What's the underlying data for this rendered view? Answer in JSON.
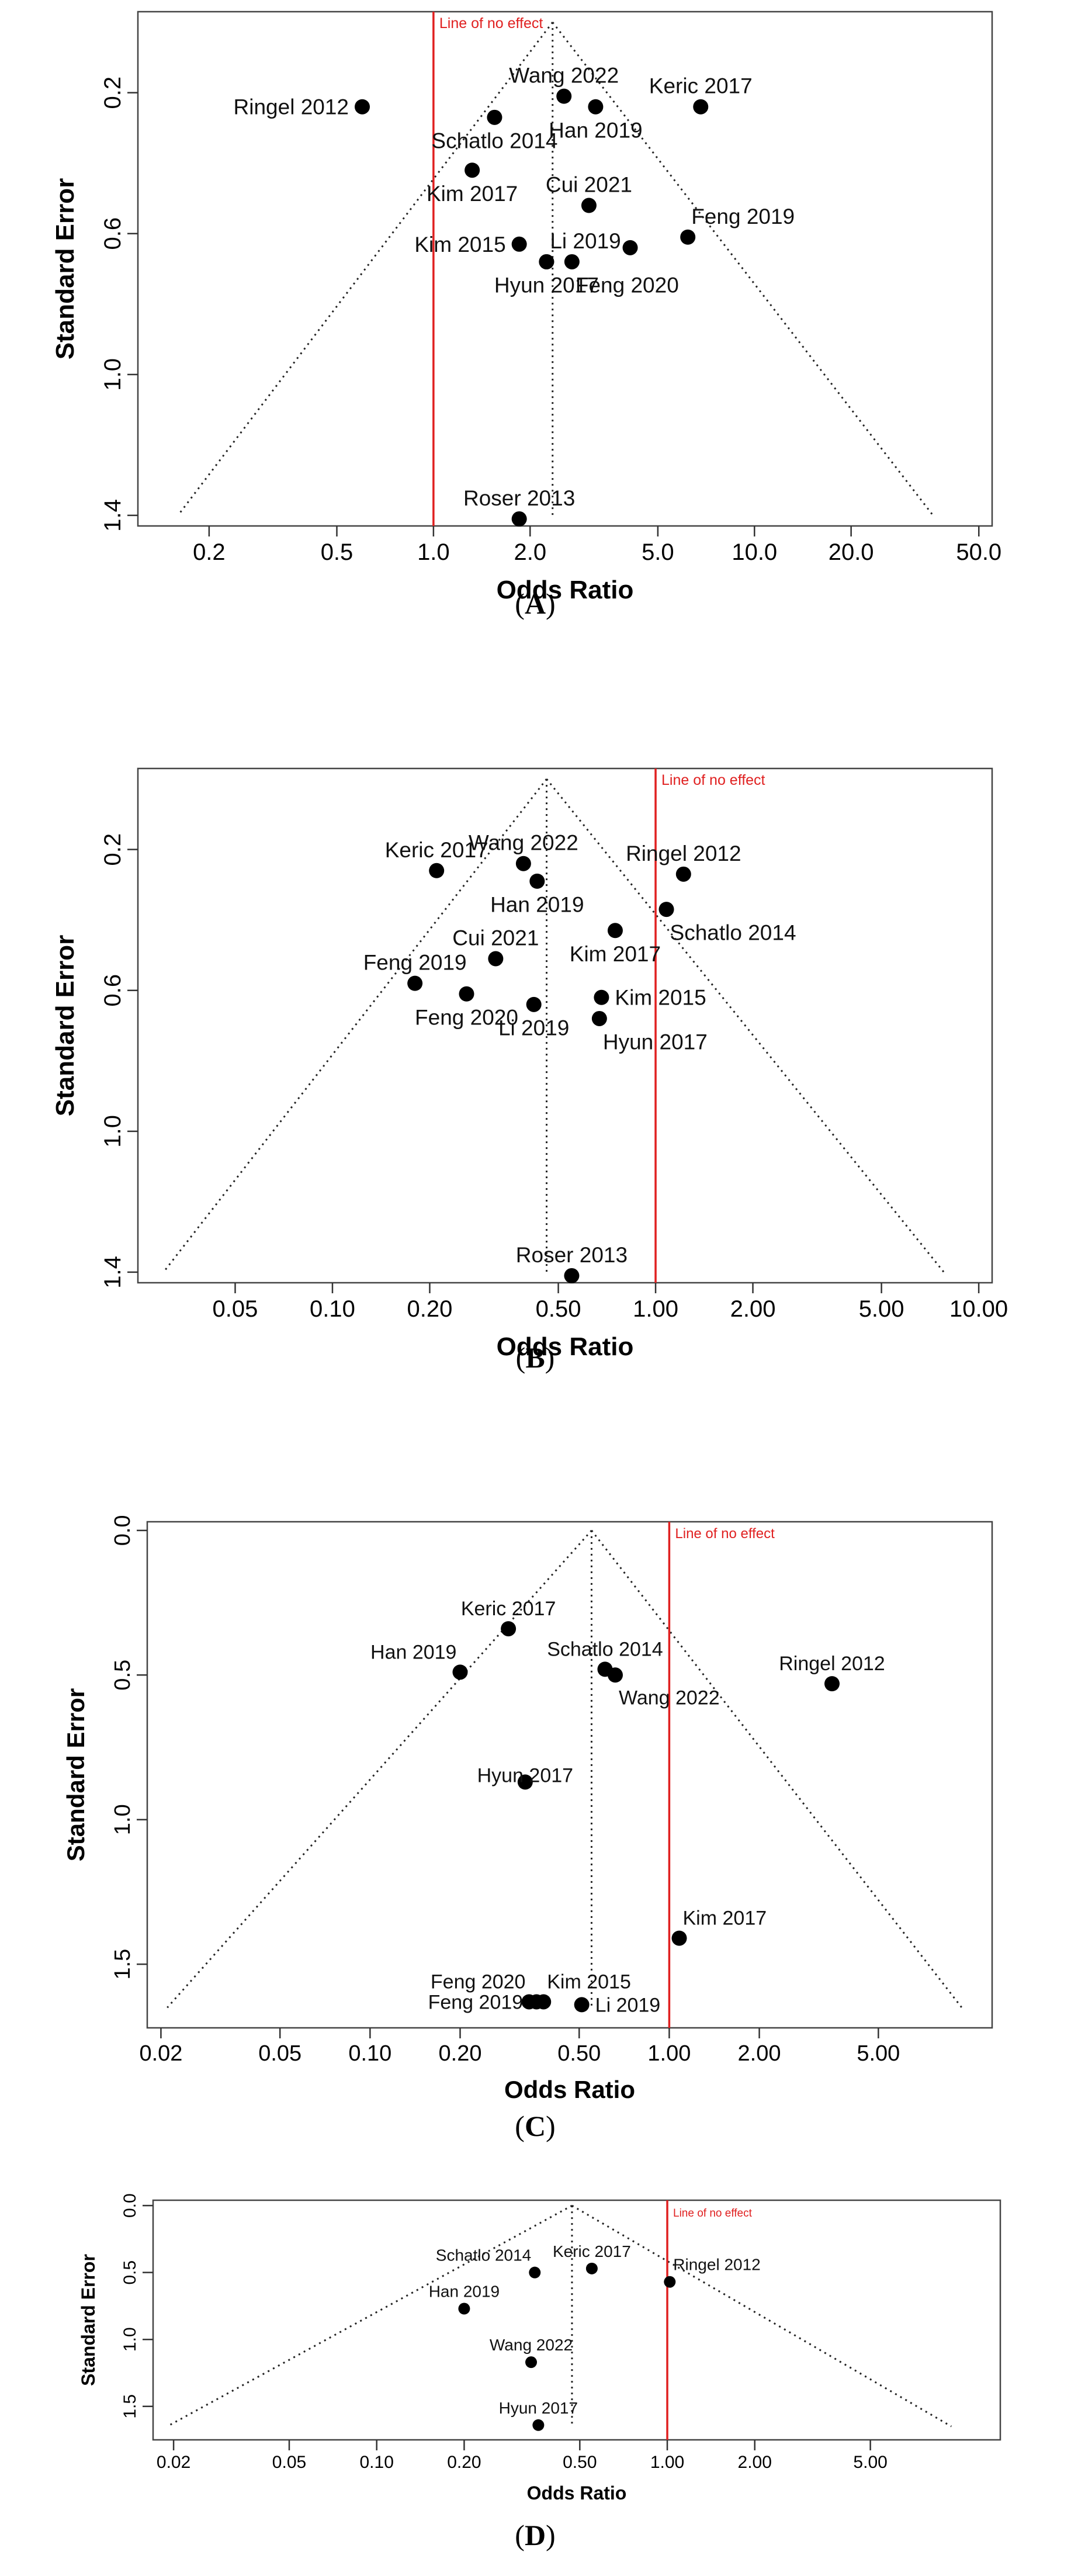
{
  "chart_data": [
    {
      "type": "scatter",
      "caption": "(A)",
      "xlabel": "Odds Ratio",
      "ylabel": "Standard Error",
      "xscale": "log",
      "xlim": [
        0.12,
        55
      ],
      "ylim": [
        1.43,
        -0.03
      ],
      "x_ticks": [
        0.2,
        0.5,
        1.0,
        2.0,
        5.0,
        10.0,
        20.0,
        50.0
      ],
      "x_tick_labels": [
        "0.2",
        "0.5",
        "1.0",
        "2.0",
        "5.0",
        "10.0",
        "20.0",
        "50.0"
      ],
      "y_ticks": [
        0.2,
        0.6,
        1.0,
        1.4
      ],
      "y_tick_labels": [
        "0.2",
        "0.6",
        "1.0",
        "1.4"
      ],
      "funnel": {
        "apex_x": 2.35,
        "apex_y": 0.0,
        "left_x": 0.16,
        "right_x": 36,
        "base_y": 1.4
      },
      "no_effect": {
        "x": 1.0,
        "label": "Line of no effect",
        "label_side": "right"
      },
      "points": [
        {
          "label": "Ringel 2012",
          "x": 0.6,
          "y": 0.24,
          "label_pos": "left"
        },
        {
          "label": "Wang 2022",
          "x": 2.55,
          "y": 0.21,
          "label_pos": "above"
        },
        {
          "label": "Keric 2017",
          "x": 6.8,
          "y": 0.24,
          "label_pos": "above"
        },
        {
          "label": "Han 2019",
          "x": 3.2,
          "y": 0.24,
          "label_pos": "below"
        },
        {
          "label": "Schatlo 2014",
          "x": 1.55,
          "y": 0.27,
          "label_pos": "below"
        },
        {
          "label": "Kim 2017",
          "x": 1.32,
          "y": 0.42,
          "label_pos": "below"
        },
        {
          "label": "Cui 2021",
          "x": 3.05,
          "y": 0.52,
          "label_pos": "above"
        },
        {
          "label": "Feng 2019",
          "x": 6.2,
          "y": 0.61,
          "label_pos": "above-right"
        },
        {
          "label": "Kim 2015",
          "x": 1.85,
          "y": 0.63,
          "label_pos": "left"
        },
        {
          "label": "Li 2019",
          "x": 2.25,
          "y": 0.68,
          "label_pos": "above-right"
        },
        {
          "label": "Feng 2020",
          "x": 2.7,
          "y": 0.68,
          "label_pos": "below-right"
        },
        {
          "label": "Hyun 2017",
          "x": 2.25,
          "y": 0.68,
          "label_pos": "below"
        },
        {
          "label": "Feng 2020",
          "x": 4.1,
          "y": 0.64,
          "label_pos": "none"
        },
        {
          "label": "Roser 2013",
          "x": 1.85,
          "y": 1.41,
          "label_pos": "above"
        }
      ]
    },
    {
      "type": "scatter",
      "caption": "(B)",
      "xlabel": "Odds Ratio",
      "ylabel": "Standard Error",
      "xscale": "log",
      "xlim": [
        0.025,
        11
      ],
      "ylim": [
        1.43,
        -0.03
      ],
      "x_ticks": [
        0.05,
        0.1,
        0.2,
        0.5,
        1.0,
        2.0,
        5.0,
        10.0
      ],
      "x_tick_labels": [
        "0.05",
        "0.10",
        "0.20",
        "0.50",
        "1.00",
        "2.00",
        "5.00",
        "10.00"
      ],
      "y_ticks": [
        0.2,
        0.6,
        1.0,
        1.4
      ],
      "y_tick_labels": [
        "0.2",
        "0.6",
        "1.0",
        "1.4"
      ],
      "funnel": {
        "apex_x": 0.46,
        "apex_y": 0.0,
        "left_x": 0.03,
        "right_x": 7.8,
        "base_y": 1.4
      },
      "no_effect": {
        "x": 1.0,
        "label": "Line of no effect",
        "label_side": "right"
      },
      "points": [
        {
          "label": "Keric 2017",
          "x": 0.21,
          "y": 0.26,
          "label_pos": "above"
        },
        {
          "label": "Wang 2022",
          "x": 0.39,
          "y": 0.24,
          "label_pos": "above"
        },
        {
          "label": "Ringel 2012",
          "x": 1.22,
          "y": 0.27,
          "label_pos": "above"
        },
        {
          "label": "Han 2019",
          "x": 0.43,
          "y": 0.29,
          "label_pos": "below"
        },
        {
          "label": "Schatlo 2014",
          "x": 1.08,
          "y": 0.37,
          "label_pos": "below-right"
        },
        {
          "label": "Kim 2017",
          "x": 0.75,
          "y": 0.43,
          "label_pos": "below"
        },
        {
          "label": "Cui 2021",
          "x": 0.32,
          "y": 0.51,
          "label_pos": "above"
        },
        {
          "label": "Feng 2019",
          "x": 0.18,
          "y": 0.58,
          "label_pos": "above"
        },
        {
          "label": "Feng 2020",
          "x": 0.26,
          "y": 0.61,
          "label_pos": "below"
        },
        {
          "label": "Kim 2015",
          "x": 0.68,
          "y": 0.62,
          "label_pos": "right"
        },
        {
          "label": "Li 2019",
          "x": 0.42,
          "y": 0.64,
          "label_pos": "below"
        },
        {
          "label": "Hyun 2017",
          "x": 0.67,
          "y": 0.68,
          "label_pos": "below-right"
        },
        {
          "label": "Roser 2013",
          "x": 0.55,
          "y": 1.41,
          "label_pos": "above"
        }
      ]
    },
    {
      "type": "scatter",
      "caption": "(C)",
      "xlabel": "Odds Ratio",
      "ylabel": "Standard Error",
      "xscale": "log",
      "xlim": [
        0.018,
        12
      ],
      "ylim": [
        1.72,
        -0.03
      ],
      "x_ticks": [
        0.02,
        0.05,
        0.1,
        0.2,
        0.5,
        1.0,
        2.0,
        5.0
      ],
      "x_tick_labels": [
        "0.02",
        "0.05",
        "0.10",
        "0.20",
        "0.50",
        "1.00",
        "2.00",
        "5.00"
      ],
      "y_ticks": [
        0.0,
        0.5,
        1.0,
        1.5
      ],
      "y_tick_labels": [
        "0.0",
        "0.5",
        "1.0",
        "1.5"
      ],
      "funnel": {
        "apex_x": 0.55,
        "apex_y": 0.0,
        "left_x": 0.021,
        "right_x": 9.5,
        "base_y": 1.65
      },
      "no_effect": {
        "x": 1.0,
        "label": "Line of no effect",
        "label_side": "right"
      },
      "points": [
        {
          "label": "Keric 2017",
          "x": 0.29,
          "y": 0.34,
          "label_pos": "above"
        },
        {
          "label": "Han 2019",
          "x": 0.2,
          "y": 0.49,
          "label_pos": "above-left"
        },
        {
          "label": "Schatlo 2014",
          "x": 0.61,
          "y": 0.48,
          "label_pos": "above"
        },
        {
          "label": "Wang 2022",
          "x": 0.66,
          "y": 0.5,
          "label_pos": "below-right"
        },
        {
          "label": "Ringel 2012",
          "x": 3.5,
          "y": 0.53,
          "label_pos": "above"
        },
        {
          "label": "Hyun 2017",
          "x": 0.33,
          "y": 0.87,
          "label_pos": "none"
        },
        {
          "label": "Kim 2017",
          "x": 1.08,
          "y": 1.41,
          "label_pos": "above-right"
        },
        {
          "label": "Feng 2020",
          "x": 0.34,
          "y": 1.63,
          "label_pos": "above-left"
        },
        {
          "label": "Feng 2019",
          "x": 0.36,
          "y": 1.63,
          "label_pos": "left"
        },
        {
          "label": "Kim 2015",
          "x": 0.38,
          "y": 1.63,
          "label_pos": "above-right"
        },
        {
          "label": "Li 2019",
          "x": 0.51,
          "y": 1.64,
          "label_pos": "right"
        }
      ],
      "annotations": [
        {
          "label": "Hyun 2017",
          "x": 0.33,
          "y": 0.87
        }
      ]
    },
    {
      "type": "scatter",
      "caption": "(D)",
      "xlabel": "Odds Ratio",
      "ylabel": "Standard Error",
      "xscale": "log",
      "xlim": [
        0.017,
        14
      ],
      "ylim": [
        1.75,
        -0.04
      ],
      "x_ticks": [
        0.02,
        0.05,
        0.1,
        0.2,
        0.5,
        1.0,
        2.0,
        5.0
      ],
      "x_tick_labels": [
        "0.02",
        "0.05",
        "0.10",
        "0.20",
        "0.50",
        "1.00",
        "2.00",
        "5.00"
      ],
      "y_ticks": [
        0.0,
        0.5,
        1.0,
        1.5
      ],
      "y_tick_labels": [
        "0.0",
        "0.5",
        "1.0",
        "1.5"
      ],
      "funnel": {
        "apex_x": 0.47,
        "apex_y": 0.0,
        "left_x": 0.019,
        "right_x": 9.5,
        "base_y": 1.65
      },
      "no_effect": {
        "x": 1.0,
        "label": "Line of no effect",
        "label_side": "right"
      },
      "points": [
        {
          "label": "Schatlo 2014",
          "x": 0.35,
          "y": 0.5,
          "label_pos": "above-left"
        },
        {
          "label": "Keric 2017",
          "x": 0.55,
          "y": 0.47,
          "label_pos": "above"
        },
        {
          "label": "Ringel 2012",
          "x": 1.02,
          "y": 0.57,
          "label_pos": "above-right"
        },
        {
          "label": "Han 2019",
          "x": 0.2,
          "y": 0.77,
          "label_pos": "above"
        },
        {
          "label": "Wang 2022",
          "x": 0.34,
          "y": 1.17,
          "label_pos": "above"
        },
        {
          "label": "Hyun 2017",
          "x": 0.36,
          "y": 1.64,
          "label_pos": "above"
        }
      ]
    }
  ]
}
